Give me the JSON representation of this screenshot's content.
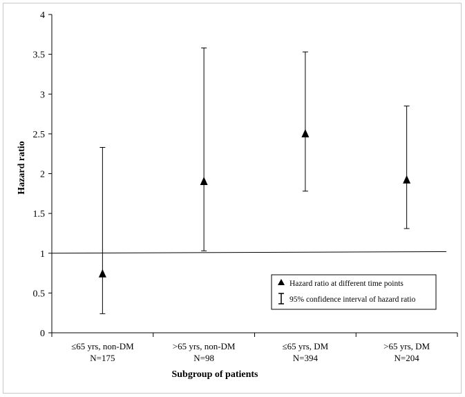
{
  "chart_data": {
    "type": "scatter",
    "xlabel": "Subgroup  of patients",
    "ylabel": "Hazard ratio",
    "ylim": [
      0,
      4
    ],
    "yticks": [
      "0",
      "0.5",
      "1",
      "1.5",
      "2",
      "2.5",
      "3",
      "3.5",
      "4"
    ],
    "categories": [
      {
        "line1": "≤65 yrs, non-DM",
        "line2": "N=175"
      },
      {
        "line1": ">65 yrs, non-DM",
        "line2": "N=98"
      },
      {
        "line1": "≤65 yrs, DM",
        "line2": "N=394"
      },
      {
        "line1": ">65 yrs, DM",
        "line2": "N=204"
      }
    ],
    "series": [
      {
        "name": "Hazard ratio at different time points",
        "marker": "triangle",
        "values": [
          0.74,
          1.9,
          2.5,
          1.92
        ],
        "ci_low": [
          0.24,
          1.03,
          1.78,
          1.31
        ],
        "ci_high": [
          2.33,
          3.58,
          3.53,
          2.85
        ]
      }
    ],
    "reference_line": 1.0,
    "legend": {
      "position": "bottom-right",
      "point_label": "Hazard ratio at different time points",
      "ci_label": "95% confidence interval of hazard ratio"
    },
    "grid": false
  }
}
